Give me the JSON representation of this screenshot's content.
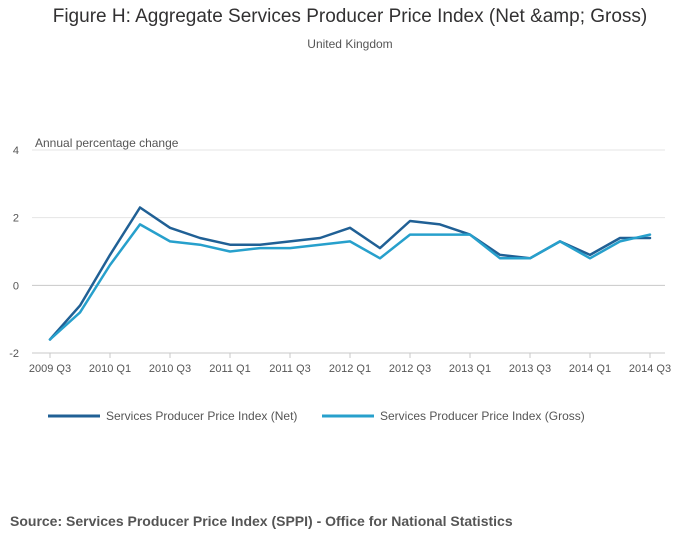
{
  "chart_data": {
    "type": "line",
    "title": "Figure H: Aggregate Services Producer Price Index (Net &amp; Gross)",
    "subtitle": "United Kingdom",
    "ylabel": "Annual percentage change",
    "xlabel": "",
    "ylim": [
      -2,
      4
    ],
    "yticks": [
      -2,
      0,
      2,
      4
    ],
    "grid": true,
    "legend_position": "bottom-left",
    "categories": [
      "2009 Q3",
      "2009 Q4",
      "2010 Q1",
      "2010 Q2",
      "2010 Q3",
      "2010 Q4",
      "2011 Q1",
      "2011 Q2",
      "2011 Q3",
      "2011 Q4",
      "2012 Q1",
      "2012 Q2",
      "2012 Q3",
      "2012 Q4",
      "2013 Q1",
      "2013 Q2",
      "2013 Q3",
      "2013 Q4",
      "2014 Q1",
      "2014 Q2",
      "2014 Q3"
    ],
    "tick_labels": [
      "2009 Q3",
      "",
      "2010 Q1",
      "",
      "2010 Q3",
      "",
      "2011 Q1",
      "",
      "2011 Q3",
      "",
      "2012 Q1",
      "",
      "2012 Q3",
      "",
      "2013 Q1",
      "",
      "2013 Q3",
      "",
      "2014 Q1",
      "",
      "2014 Q3"
    ],
    "series": [
      {
        "name": "Services Producer Price Index (Net)",
        "color": "#206095",
        "values": [
          -1.6,
          -0.6,
          0.9,
          2.3,
          1.7,
          1.4,
          1.2,
          1.2,
          1.3,
          1.4,
          1.7,
          1.1,
          1.9,
          1.8,
          1.5,
          0.9,
          0.8,
          1.3,
          0.9,
          1.4,
          1.4
        ]
      },
      {
        "name": "Services Producer Price Index (Gross)",
        "color": "#27a0cc",
        "values": [
          -1.6,
          -0.8,
          0.6,
          1.8,
          1.3,
          1.2,
          1.0,
          1.1,
          1.1,
          1.2,
          1.3,
          0.8,
          1.5,
          1.5,
          1.5,
          0.8,
          0.8,
          1.3,
          0.8,
          1.3,
          1.5
        ]
      }
    ]
  },
  "source": "Source: Services Producer Price Index (SPPI) - Office for National Statistics"
}
